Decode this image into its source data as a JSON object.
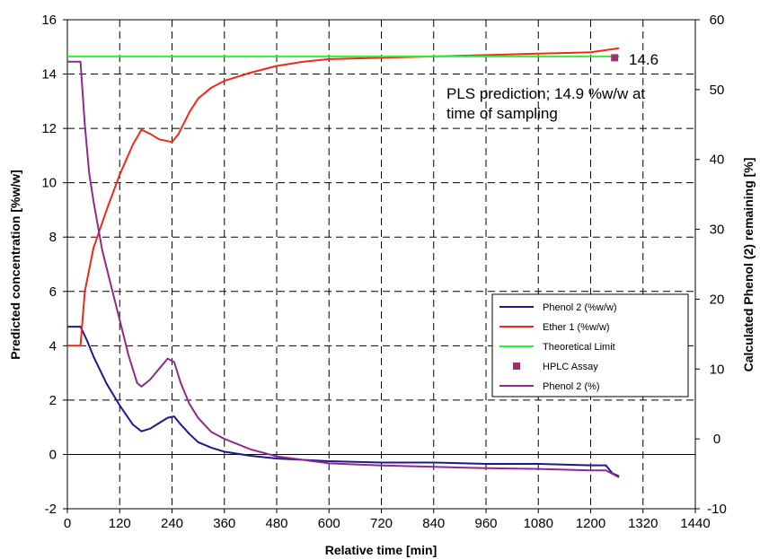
{
  "chart_data": {
    "type": "line",
    "xlabel": "Relative time [min]",
    "ylabel": "Predicted concentration [%w/w]",
    "y2label": "Calculated Phenol (2) remaining [%]",
    "xlim": [
      0,
      1440
    ],
    "ylim": [
      -2,
      16
    ],
    "y2lim": [
      -10,
      60
    ],
    "x_ticks": [
      "0",
      "120",
      "240",
      "360",
      "480",
      "600",
      "720",
      "840",
      "960",
      "1080",
      "1200",
      "1320",
      "1440"
    ],
    "y_ticks": [
      "-2",
      "0",
      "2",
      "4",
      "6",
      "8",
      "10",
      "12",
      "14",
      "16"
    ],
    "y2_ticks": [
      "-10",
      "0",
      "10",
      "20",
      "30",
      "40",
      "50",
      "60"
    ],
    "grid": true,
    "legend_position": "center-right",
    "annotations": [
      {
        "text": "14.6"
      },
      {
        "text": "PLS prediction; 14.9 %w/w at"
      },
      {
        "text": "time of sampling"
      }
    ],
    "series": [
      {
        "name": "Phenol 2 (%w/w)",
        "color": "#1a1a8c",
        "axis": "left",
        "kind": "line",
        "x": [
          0,
          30,
          45,
          60,
          90,
          120,
          150,
          170,
          190,
          210,
          230,
          245,
          260,
          280,
          300,
          330,
          360,
          420,
          480,
          540,
          600,
          720,
          840,
          960,
          1080,
          1200,
          1235,
          1250,
          1265
        ],
        "y": [
          4.7,
          4.7,
          4.2,
          3.6,
          2.6,
          1.8,
          1.1,
          0.85,
          0.95,
          1.15,
          1.35,
          1.4,
          1.1,
          0.75,
          0.45,
          0.25,
          0.1,
          -0.05,
          -0.15,
          -0.2,
          -0.25,
          -0.3,
          -0.3,
          -0.35,
          -0.35,
          -0.4,
          -0.4,
          -0.7,
          -0.8
        ]
      },
      {
        "name": "Ether 1 (%w/w)",
        "color": "#ee2a1a",
        "axis": "left",
        "kind": "line",
        "x": [
          0,
          30,
          40,
          60,
          90,
          120,
          150,
          170,
          190,
          210,
          240,
          255,
          280,
          300,
          330,
          360,
          420,
          480,
          540,
          600,
          720,
          840,
          960,
          1080,
          1200,
          1265
        ],
        "y": [
          4.0,
          4.0,
          6.0,
          7.6,
          9.0,
          10.3,
          11.4,
          11.95,
          11.8,
          11.6,
          11.5,
          11.8,
          12.6,
          13.1,
          13.5,
          13.75,
          14.05,
          14.3,
          14.45,
          14.55,
          14.6,
          14.65,
          14.7,
          14.75,
          14.8,
          14.95
        ]
      },
      {
        "name": "Theoretical Limit",
        "color": "#33ee33",
        "axis": "left",
        "kind": "line",
        "x": [
          0,
          1265
        ],
        "y": [
          14.65,
          14.65
        ]
      },
      {
        "name": "HPLC Assay",
        "color": "#a0306a",
        "axis": "left",
        "kind": "marker",
        "x": [
          1255
        ],
        "y": [
          14.6
        ]
      },
      {
        "name": "Phenol 2 (%)",
        "color": "#8e2a8c",
        "axis": "right",
        "kind": "line",
        "x": [
          0,
          20,
          30,
          40,
          50,
          60,
          80,
          100,
          120,
          140,
          160,
          170,
          190,
          210,
          230,
          245,
          260,
          280,
          300,
          330,
          360,
          420,
          480,
          540,
          600,
          720,
          840,
          960,
          1080,
          1200,
          1235,
          1250,
          1265
        ],
        "y": [
          54,
          54,
          54,
          45,
          38,
          34,
          27,
          22,
          17,
          12,
          8,
          7.5,
          8.5,
          10,
          11.5,
          11,
          8,
          5,
          3,
          1,
          0,
          -1.5,
          -2.5,
          -3,
          -3.5,
          -3.8,
          -4,
          -4.2,
          -4.3,
          -4.5,
          -4.5,
          -5,
          -5.5
        ]
      }
    ]
  }
}
